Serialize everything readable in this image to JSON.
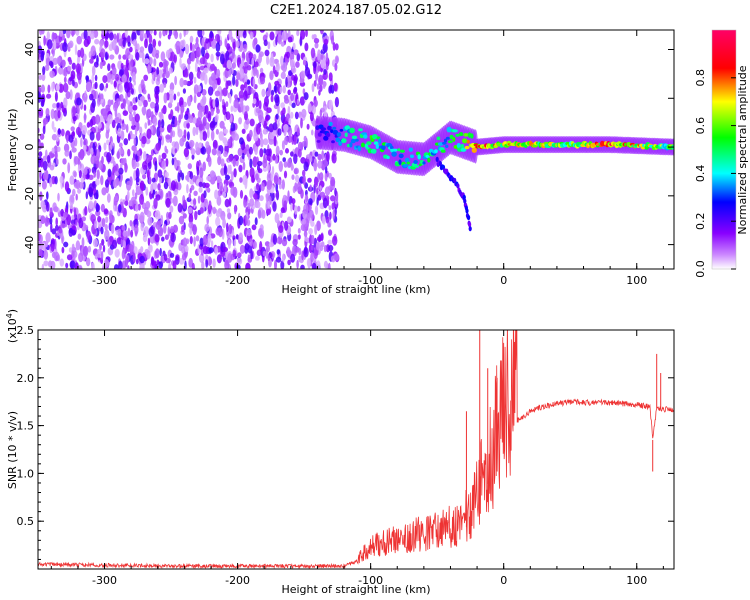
{
  "title": "C2E1.2024.187.05.02.G12",
  "chart_data": [
    {
      "type": "heatmap",
      "xlabel": "Height of straight line (km)",
      "ylabel": "Frequency (Hz)",
      "xlim": [
        -350,
        128
      ],
      "ylim": [
        -50,
        48
      ],
      "xticks": [
        -300,
        -200,
        -100,
        0,
        100
      ],
      "xtick_labels": [
        "-300",
        "-200",
        "-100",
        "0",
        "100"
      ],
      "yticks": [
        -40,
        -20,
        0,
        20,
        40
      ],
      "ytick_labels": [
        "-40",
        "-20",
        "0",
        "20",
        "40"
      ],
      "colorbar": {
        "label": "Normalized spectral amplitude",
        "range": [
          0,
          1
        ],
        "ticks": [
          0.0,
          0.2,
          0.4,
          0.6,
          0.8
        ],
        "tick_labels": [
          "0.0",
          "0.2",
          "0.4",
          "0.6",
          "0.8"
        ],
        "colormap": [
          "#ffffff",
          "#8800ff",
          "#0000ff",
          "#00ffff",
          "#00ff00",
          "#ffff00",
          "#ff0000",
          "#ff0066"
        ]
      },
      "features": {
        "noise_region_x": [
          -350,
          -125
        ],
        "signal_center_hz": 0,
        "signal_band": [
          {
            "x": -140,
            "y": 6,
            "amp": 0.25
          },
          {
            "x": -120,
            "y": 5,
            "amp": 0.45
          },
          {
            "x": -100,
            "y": 2,
            "amp": 0.55
          },
          {
            "x": -80,
            "y": -4,
            "amp": 0.5
          },
          {
            "x": -60,
            "y": -5,
            "amp": 0.55
          },
          {
            "x": -40,
            "y": 4,
            "amp": 0.5
          },
          {
            "x": -20,
            "y": 0,
            "amp": 0.85
          },
          {
            "x": 0,
            "y": 1,
            "amp": 0.8
          },
          {
            "x": 50,
            "y": 1,
            "amp": 0.65
          },
          {
            "x": 80,
            "y": 1,
            "amp": 0.9
          },
          {
            "x": 128,
            "y": 0,
            "amp": 0.6
          }
        ],
        "branch": [
          {
            "x": -50,
            "y": -6
          },
          {
            "x": -40,
            "y": -12
          },
          {
            "x": -30,
            "y": -20
          },
          {
            "x": -25,
            "y": -33
          }
        ]
      }
    },
    {
      "type": "line",
      "xlabel": "Height of straight line (km)",
      "ylabel": "SNR (10 * v/v)",
      "y_multiplier": "(x10",
      "y_multiplier_exp": "4",
      "y_multiplier_close": ")",
      "xlim": [
        -350,
        128
      ],
      "ylim": [
        0,
        2.5
      ],
      "xticks": [
        -300,
        -200,
        -100,
        0,
        100
      ],
      "xtick_labels": [
        "-300",
        "-200",
        "-100",
        "0",
        "100"
      ],
      "yticks": [
        0.5,
        1.0,
        1.5,
        2.0,
        2.5
      ],
      "ytick_labels": [
        "0.5",
        "1.0",
        "1.5",
        "2.0",
        "2.5"
      ],
      "series": [
        {
          "color": "#ee3333",
          "x": [
            -350,
            -300,
            -250,
            -200,
            -150,
            -120,
            -110,
            -100,
            -90,
            -80,
            -70,
            -60,
            -50,
            -40,
            -30,
            -25,
            -20,
            -15,
            -10,
            -5,
            0,
            5,
            10,
            20,
            30,
            40,
            50,
            60,
            70,
            80,
            90,
            100,
            105,
            110,
            112,
            115,
            120,
            128
          ],
          "y": [
            0.05,
            0.04,
            0.03,
            0.03,
            0.03,
            0.03,
            0.08,
            0.18,
            0.22,
            0.25,
            0.28,
            0.3,
            0.32,
            0.35,
            0.4,
            0.5,
            0.65,
            0.8,
            0.95,
            1.15,
            1.3,
            1.45,
            1.55,
            1.65,
            1.7,
            1.73,
            1.75,
            1.74,
            1.74,
            1.74,
            1.73,
            1.72,
            1.71,
            1.7,
            1.35,
            1.68,
            1.67,
            1.67
          ]
        }
      ],
      "spikes": [
        {
          "x": -18,
          "y": 2.5
        },
        {
          "x": -12,
          "y": 2.1
        },
        {
          "x": -5,
          "y": 2.0
        },
        {
          "x": -28,
          "y": 1.65
        },
        {
          "x": 115,
          "y": 2.25
        },
        {
          "x": 112,
          "y": 1.02
        },
        {
          "x": 118,
          "y": 2.05
        }
      ]
    }
  ]
}
